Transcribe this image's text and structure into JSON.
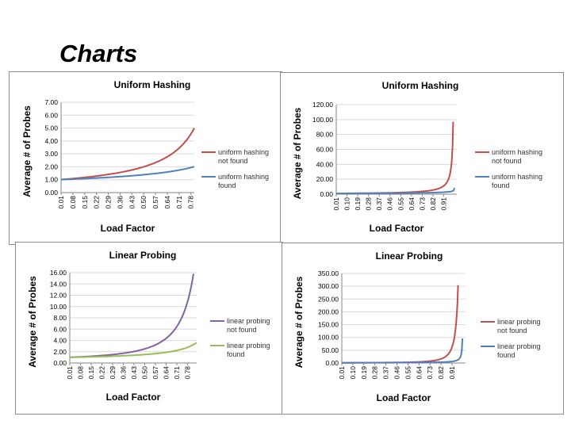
{
  "page": {
    "title": "Charts"
  },
  "chart_data": [
    {
      "type": "line",
      "title": "Uniform Hashing",
      "xlabel": "Load Factor",
      "ylabel": "Average # of Probes",
      "x_ticks": [
        "0.01",
        "0.08",
        "0.15",
        "0.22",
        "0.29",
        "0.36",
        "0.43",
        "0.50",
        "0.57",
        "0.64",
        "0.71",
        "0.78"
      ],
      "xlim": [
        0.01,
        0.8
      ],
      "ylim": [
        0,
        7
      ],
      "y_ticks": [
        "0.00",
        "1.00",
        "2.00",
        "3.00",
        "4.00",
        "5.00",
        "6.00",
        "7.00"
      ],
      "y_tick_values": [
        0,
        1,
        2,
        3,
        4,
        5,
        6,
        7
      ],
      "grid": "horizontal",
      "legend_position": "right",
      "series": [
        {
          "name_lines": [
            "uniform hashing",
            "not found"
          ],
          "color": "#c0504d",
          "formula": "unsuccessful"
        },
        {
          "name_lines": [
            "uniform hashing",
            "found"
          ],
          "color": "#4f81bd",
          "formula": "successful"
        }
      ]
    },
    {
      "type": "line",
      "title": "Uniform Hashing",
      "xlabel": "Load Factor",
      "ylabel": "Average # of Probes",
      "x_ticks": [
        "0.01",
        "0.10",
        "0.19",
        "0.28",
        "0.37",
        "0.46",
        "0.55",
        "0.64",
        "0.73",
        "0.82",
        "0.91"
      ],
      "xlim": [
        0.01,
        1.02
      ],
      "ylim": [
        0,
        120
      ],
      "y_ticks": [
        "0.00",
        "20.00",
        "40.00",
        "60.00",
        "80.00",
        "100.00",
        "120.00"
      ],
      "y_tick_values": [
        0,
        20,
        40,
        60,
        80,
        100,
        120
      ],
      "grid": "horizontal",
      "legend_position": "right",
      "series": [
        {
          "name_lines": [
            "uniform hashing",
            "not found"
          ],
          "color": "#c0504d",
          "formula": "unsuccessful"
        },
        {
          "name_lines": [
            "uniform hashing",
            "found"
          ],
          "color": "#4f81bd",
          "formula": "successful"
        }
      ]
    },
    {
      "type": "line",
      "title": "Linear Probing",
      "xlabel": "Load Factor",
      "ylabel": "Average # of Probes",
      "x_ticks": [
        "0.01",
        "0.08",
        "0.15",
        "0.22",
        "0.29",
        "0.36",
        "0.43",
        "0.50",
        "0.57",
        "0.64",
        "0.71",
        "0.78"
      ],
      "xlim": [
        0.01,
        0.84
      ],
      "ylim": [
        0,
        16
      ],
      "y_ticks": [
        "0.00",
        "2.00",
        "4.00",
        "6.00",
        "8.00",
        "10.00",
        "12.00",
        "14.00",
        "16.00"
      ],
      "y_tick_values": [
        0,
        2,
        4,
        6,
        8,
        10,
        12,
        14,
        16
      ],
      "grid": "horizontal",
      "legend_position": "right",
      "series": [
        {
          "name_lines": [
            "linear probing",
            "not found"
          ],
          "color": "#8064a2",
          "formula": "linear_unsuccessful"
        },
        {
          "name_lines": [
            "linear probing",
            "found"
          ],
          "color": "#9bbb59",
          "formula": "linear_successful"
        }
      ]
    },
    {
      "type": "line",
      "title": "Linear Probing",
      "xlabel": "Load Factor",
      "ylabel": "Average # of Probes",
      "x_ticks": [
        "0.01",
        "0.10",
        "0.19",
        "0.28",
        "0.37",
        "0.46",
        "0.55",
        "0.64",
        "0.73",
        "0.82",
        "0.91"
      ],
      "xlim": [
        0.01,
        1.02
      ],
      "ylim": [
        0,
        350
      ],
      "y_ticks": [
        "0.00",
        "50.00",
        "100.00",
        "150.00",
        "200.00",
        "250.00",
        "300.00",
        "350.00"
      ],
      "y_tick_values": [
        0,
        50,
        100,
        150,
        200,
        250,
        300,
        350
      ],
      "grid": "horizontal",
      "legend_position": "right",
      "series": [
        {
          "name_lines": [
            "linear probing",
            "not found"
          ],
          "color": "#c0504d",
          "formula": "linear_unsuccessful"
        },
        {
          "name_lines": [
            "linear probing",
            "found"
          ],
          "color": "#4f81bd",
          "formula": "linear_successful"
        }
      ]
    }
  ]
}
